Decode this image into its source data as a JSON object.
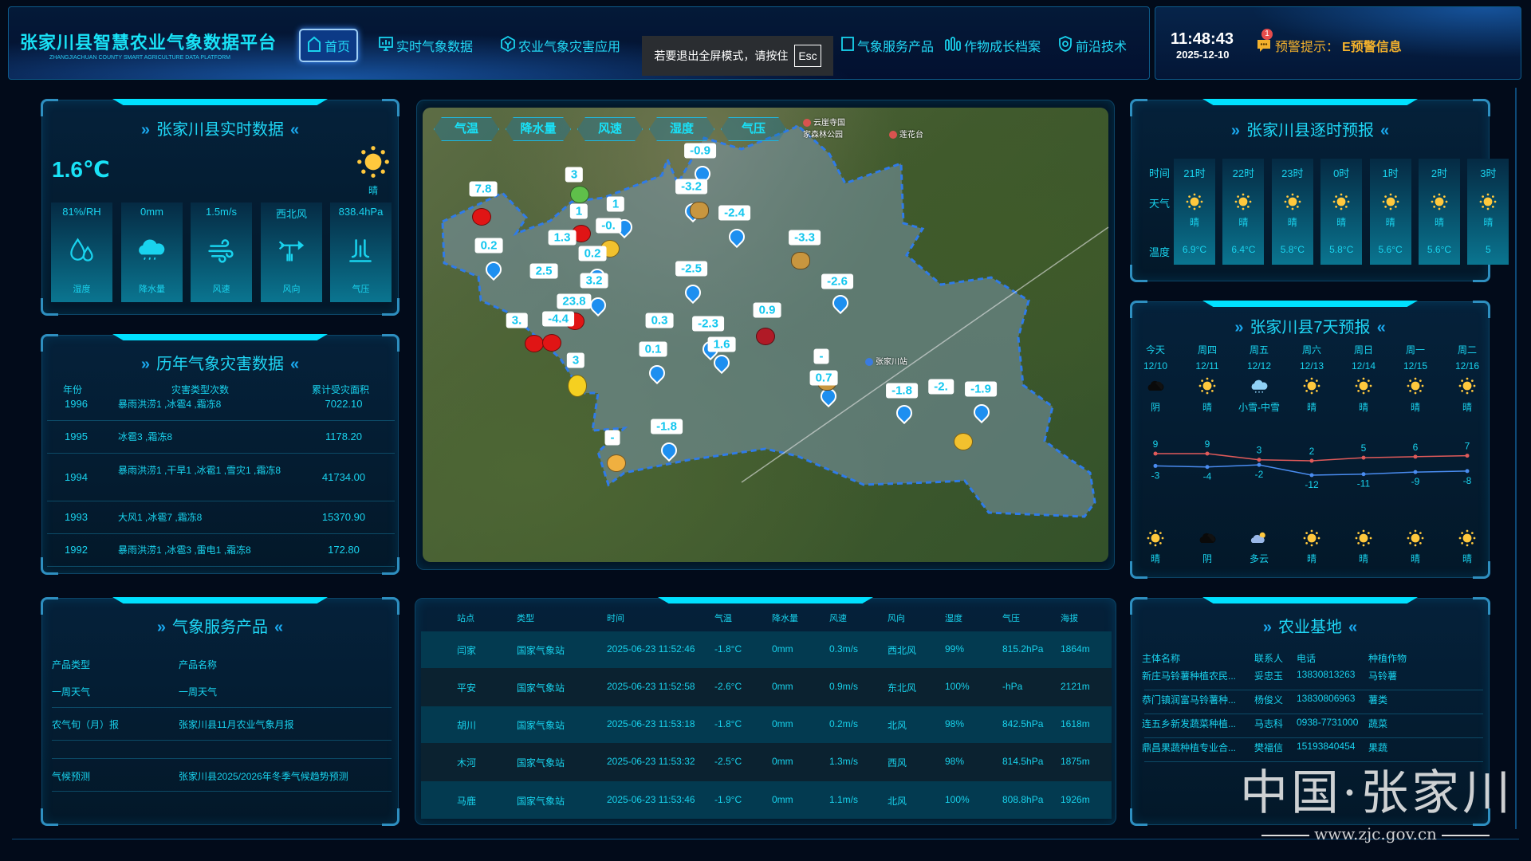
{
  "header": {
    "title": "张家川县智慧农业气象数据平台",
    "subtitle": "ZHANGJIACHUAN COUNTY SMART AGRICULTURE DATA PLATFORM",
    "nav": [
      {
        "label": "首页",
        "icon": "home-icon",
        "active": true
      },
      {
        "label": "实时气象数据",
        "icon": "monitor-chart-icon"
      },
      {
        "label": "农业气象灾害应用",
        "icon": "hexagon-icon"
      },
      {
        "label": "气象服务产品",
        "icon": "document-icon"
      },
      {
        "label": "作物成长档案",
        "icon": "bottles-icon"
      },
      {
        "label": "前沿技术",
        "icon": "shield-icon"
      }
    ],
    "toast": {
      "text": "若要退出全屏模式，请按住",
      "key": "Esc"
    },
    "clock": {
      "time": "11:48:43",
      "date": "2025-12-10"
    },
    "alert": {
      "badge": "1",
      "label": "预警提示：",
      "text": "E预警信息",
      "icon": "message-icon"
    }
  },
  "realtime": {
    "title": "张家川县实时数据",
    "temperature": "1.6℃",
    "weather": "晴",
    "weather_icon": "sun-icon",
    "metrics": [
      {
        "value": "81%/RH",
        "label": "湿度",
        "icon": "humidity-icon"
      },
      {
        "value": "0mm",
        "label": "降水量",
        "icon": "rain-cloud-icon"
      },
      {
        "value": "1.5m/s",
        "label": "风速",
        "icon": "wind-icon"
      },
      {
        "value": "西北风",
        "label": "风向",
        "icon": "wind-vane-icon"
      },
      {
        "value": "838.4hPa",
        "label": "气压",
        "icon": "pressure-icon"
      }
    ]
  },
  "disasters": {
    "title": "历年气象灾害数据",
    "columns": [
      "年份",
      "灾害类型次数",
      "累计受灾面积"
    ],
    "rows": [
      {
        "year": "1996",
        "types": "暴雨洪涝1 ,冰雹4 ,霜冻8",
        "area": "7022.10"
      },
      {
        "year": "1995",
        "types": "冰雹3 ,霜冻8",
        "area": "1178.20"
      },
      {
        "year": "1994",
        "types": "暴雨洪涝1 ,干旱1 ,冰雹1 ,雪灾1 ,霜冻8",
        "area": "41734.00"
      },
      {
        "year": "1993",
        "types": "大风1 ,冰雹7 ,霜冻8",
        "area": "15370.90"
      },
      {
        "year": "1992",
        "types": "暴雨洪涝1 ,冰雹3 ,雷电1 ,霜冻8",
        "area": "172.80"
      }
    ]
  },
  "products": {
    "title": "气象服务产品",
    "columns": [
      "产品类型",
      "产品名称"
    ],
    "rows": [
      {
        "type": "一周天气",
        "name": "一周天气"
      },
      {
        "type": "农气旬（月）报",
        "name": "张家川县11月农业气象月报"
      },
      {
        "type": "",
        "name": ""
      },
      {
        "type": "气候预测",
        "name": "张家川县2025/2026年冬季气候趋势预测"
      }
    ]
  },
  "map": {
    "tabs": [
      "气温",
      "降水量",
      "风速",
      "湿度",
      "气压"
    ],
    "places": [
      "云崖寺国家森林公园",
      "莲花台",
      "张家川站"
    ],
    "readings": [
      "-0.9",
      "3",
      "7.8",
      "-3.2",
      "1",
      "1",
      "-2.4",
      "-0.",
      "0.2",
      "-3.3",
      "0.2",
      "1.3",
      "2.5",
      "-2.5",
      "3.2",
      "23.8",
      "0.9",
      "3.",
      "-4.4",
      "0.3",
      "-2.3",
      "1.6",
      "0.1",
      "3",
      "-1.8",
      "-",
      "-2.6",
      "-",
      "0.7",
      "-1.8",
      "-2.",
      "-1.9"
    ],
    "crops": [
      "apple-icon",
      "apple-icon",
      "apple-icon",
      "apple-icon",
      "apple-icon",
      "leaf-icon",
      "corn-icon",
      "corn-icon",
      "potato-icon",
      "potato-icon",
      "potato-icon",
      "cherry-icon",
      "pear-icon",
      "wheat-icon"
    ],
    "station_pin_icon": "weather-station-pin-icon"
  },
  "stations": {
    "columns": [
      "站点",
      "类型",
      "时间",
      "气温",
      "降水量",
      "风速",
      "风向",
      "湿度",
      "气压",
      "海拔"
    ],
    "rows": [
      [
        "闫家",
        "国家气象站",
        "2025-06-23 11:52:46",
        "-1.8°C",
        "0mm",
        "0.3m/s",
        "西北风",
        "99%",
        "815.2hPa",
        "1864m"
      ],
      [
        "平安",
        "国家气象站",
        "2025-06-23 11:52:58",
        "-2.6°C",
        "0mm",
        "0.9m/s",
        "东北风",
        "100%",
        "-hPa",
        "2121m"
      ],
      [
        "胡川",
        "国家气象站",
        "2025-06-23 11:53:18",
        "-1.8°C",
        "0mm",
        "0.2m/s",
        "北风",
        "98%",
        "842.5hPa",
        "1618m"
      ],
      [
        "木河",
        "国家气象站",
        "2025-06-23 11:53:32",
        "-2.5°C",
        "0mm",
        "1.3m/s",
        "西风",
        "98%",
        "814.5hPa",
        "1875m"
      ],
      [
        "马鹿",
        "国家气象站",
        "2025-06-23 11:53:46",
        "-1.9°C",
        "0mm",
        "1.1m/s",
        "北风",
        "100%",
        "808.8hPa",
        "1926m"
      ]
    ]
  },
  "hourly": {
    "title": "张家川县逐时预报",
    "row_labels": [
      "时间",
      "天气",
      "温度"
    ],
    "items": [
      {
        "time": "21时",
        "weather": "晴",
        "temp": "6.9°C"
      },
      {
        "time": "22时",
        "weather": "晴",
        "temp": "6.4°C"
      },
      {
        "time": "23时",
        "weather": "晴",
        "temp": "5.8°C"
      },
      {
        "time": "0时",
        "weather": "晴",
        "temp": "5.8°C"
      },
      {
        "time": "1时",
        "weather": "晴",
        "temp": "5.6°C"
      },
      {
        "time": "2时",
        "weather": "晴",
        "temp": "5.6°C"
      },
      {
        "time": "3时",
        "weather": "晴",
        "temp": "5"
      }
    ]
  },
  "weekly": {
    "title": "张家川县7天预报",
    "days": [
      {
        "day": "今天",
        "date": "12/10",
        "day_weather": "阴",
        "day_icon": "overcast-icon",
        "night_weather": "晴",
        "night_icon": "sun-icon"
      },
      {
        "day": "周四",
        "date": "12/11",
        "day_weather": "晴",
        "day_icon": "sun-icon",
        "night_weather": "阴",
        "night_icon": "overcast-icon"
      },
      {
        "day": "周五",
        "date": "12/12",
        "day_weather": "小雪-中雪",
        "day_icon": "snow-icon",
        "night_weather": "多云",
        "night_icon": "partly-cloudy-icon"
      },
      {
        "day": "周六",
        "date": "12/13",
        "day_weather": "晴",
        "day_icon": "sun-icon",
        "night_weather": "晴",
        "night_icon": "sun-icon"
      },
      {
        "day": "周日",
        "date": "12/14",
        "day_weather": "晴",
        "day_icon": "sun-icon",
        "night_weather": "晴",
        "night_icon": "sun-icon"
      },
      {
        "day": "周一",
        "date": "12/15",
        "day_weather": "晴",
        "day_icon": "sun-icon",
        "night_weather": "晴",
        "night_icon": "sun-icon"
      },
      {
        "day": "周二",
        "date": "12/16",
        "day_weather": "晴",
        "day_icon": "sun-icon",
        "night_weather": "晴",
        "night_icon": "sun-icon"
      }
    ]
  },
  "chart_data": {
    "type": "line",
    "categories": [
      "12/10",
      "12/11",
      "12/12",
      "12/13",
      "12/14",
      "12/15",
      "12/16"
    ],
    "series": [
      {
        "values": [
          9,
          9,
          3,
          2,
          5,
          6,
          7
        ],
        "color": "#e05a5a"
      },
      {
        "values": [
          -3,
          -4,
          -2,
          -12,
          -11,
          -9,
          -8
        ],
        "color": "#4a8cf0"
      }
    ],
    "ylim": [
      -12,
      9
    ],
    "grid": false,
    "data_labels": true
  },
  "bases": {
    "title": "农业基地",
    "columns": [
      "主体名称",
      "联系人",
      "电话",
      "种植作物"
    ],
    "rows": [
      [
        "新庄马铃薯种植农民...",
        "妥忠玉",
        "13830813263",
        "马铃薯"
      ],
      [
        "恭门镇润富马铃薯种...",
        "杨俊义",
        "13830806963",
        "薯类"
      ],
      [
        "连五乡新发蔬菜种植...",
        "马志科",
        "0938-7731000",
        "蔬菜"
      ],
      [
        "鼎昌果蔬种植专业合...",
        "樊福信",
        "15193840454",
        "果蔬"
      ]
    ]
  },
  "watermark": {
    "text": "中国·张家川",
    "url": "www.zjc.gov.cn"
  },
  "colors": {
    "accent": "#00e1ff",
    "text": "#19d3ee",
    "background": "#020b1a",
    "alert": "#f3b12c",
    "sun": "#ffc83d"
  }
}
